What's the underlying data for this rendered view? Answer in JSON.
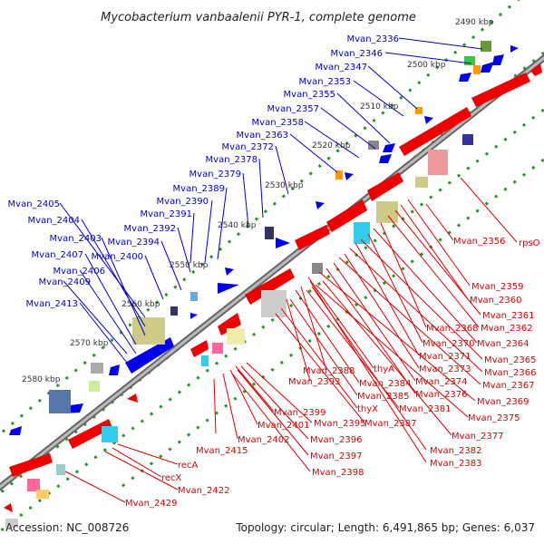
{
  "title": "Mycobacterium vanbaalenii PYR-1, complete genome",
  "footer": {
    "accession": "Accession: NC_008726",
    "summary": "Topology: circular; Length: 6,491,865 bp; Genes: 6,037"
  },
  "colors": {
    "forward_genes": "#0000ee",
    "reverse_genes": "#ee0000",
    "forward_labels": "#0000cc",
    "reverse_labels": "#dd0000",
    "ruler_ticks": "#229922",
    "backbone": "#888888"
  },
  "ruler": [
    "2490 kbp",
    "2500 kbp",
    "2510 kbp",
    "2520 kbp",
    "2530 kbp",
    "2540 kbp",
    "2550 kbp",
    "2560 kbp",
    "2570 kbp",
    "2580 kbp"
  ],
  "forward_labels": [
    "Mvan_2336",
    "Mvan_2346",
    "Mvan_2347",
    "Mvan_2353",
    "Mvan_2355",
    "Mvan_2357",
    "Mvan_2358",
    "Mvan_2363",
    "Mvan_2372",
    "Mvan_2378",
    "Mvan_2379",
    "Mvan_2389",
    "Mvan_2390",
    "Mvan_2391",
    "Mvan_2392",
    "Mvan_2394",
    "Mvan_2400",
    "Mvan_2405",
    "Mvan_2404",
    "Mvan_2403",
    "Mvan_2407",
    "Mvan_2406",
    "Mvan_2409",
    "Mvan_2413"
  ],
  "reverse_labels": [
    "Mvan_2356",
    "rpsO",
    "Mvan_2359",
    "Mvan_2360",
    "Mvan_2361",
    "Mvan_2362",
    "Mvan_2368",
    "Mvan_2364",
    "Mvan_2370",
    "Mvan_2365",
    "Mvan_2371",
    "Mvan_2366",
    "Mvan_2373",
    "Mvan_2367",
    "Mvan_2374",
    "Mvan_2376",
    "Mvan_2369",
    "thyA",
    "Mvan_2388",
    "Mvan_2384",
    "Mvan_2393",
    "Mvan_2385",
    "thyX",
    "Mvan_2381",
    "Mvan_2375",
    "Mvan_2387",
    "Mvan_2377",
    "Mvan_2399",
    "Mvan_2395",
    "Mvan_2401",
    "Mvan_2396",
    "Mvan_2402",
    "Mvan_2397",
    "Mvan_2382",
    "Mvan_2383",
    "Mvan_2415",
    "Mvan_2398",
    "recA",
    "recX",
    "Mvan_2422",
    "Mvan_2429"
  ]
}
